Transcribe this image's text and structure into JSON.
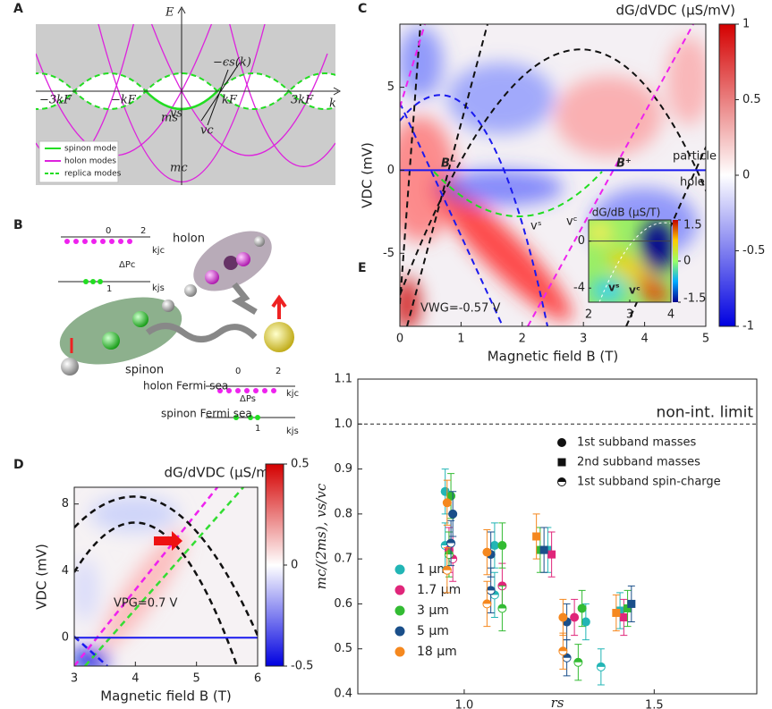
{
  "chart_data": [
    {
      "type": "dispersion-diagram",
      "panel": "A",
      "y_label": "E",
      "x_label": "k",
      "annotations": [
        "−ϵs(k)",
        "−3kF",
        "−kF",
        "ms",
        "vs",
        "kF",
        "vc",
        "3kF",
        "mc"
      ],
      "legend": [
        "spinon mode",
        "holon modes",
        "replica modes"
      ],
      "colors": {
        "spinon": "#22dd22",
        "holon": "#dd22dd"
      }
    },
    {
      "type": "particle-diagram",
      "panel": "B",
      "texts": [
        "0",
        "2",
        "ΔPc",
        "kjc",
        "holon",
        "1",
        "kjs",
        "spinon",
        "holon Fermi sea",
        "0",
        "2",
        "kjc",
        "ΔPs",
        "spinon Fermi sea",
        "1",
        "kjs"
      ]
    },
    {
      "type": "heatmap",
      "panel": "C",
      "title": "dG/dVDC (µS/mV)",
      "x_label": "Magnetic field B (T)",
      "y_label": "VDC (mV)",
      "xlim": [
        0,
        5
      ],
      "xticks": [
        0,
        1,
        2,
        3,
        4,
        5
      ],
      "ylim": [
        -9.4,
        8.8
      ],
      "yticks": [
        -5,
        0,
        5
      ],
      "colorbar": {
        "lim": [
          -1,
          1
        ],
        "ticks": [
          -1,
          -0.5,
          0,
          0.5,
          1
        ]
      },
      "annotations": [
        "B⁻",
        "B⁺",
        "particle",
        "hole",
        "vˢ",
        "vᶜ",
        "VWG=-0.57 V"
      ],
      "inset": {
        "title": "dG/dB (µS/T)",
        "xlim": [
          2,
          4
        ],
        "xticks": [
          2,
          3,
          4
        ],
        "ylim": [
          -5.2,
          1.8
        ],
        "yticks": [
          -4,
          0
        ],
        "colorbar": {
          "lim": [
            -1.5,
            1.5
          ],
          "ticks": [
            -1.5,
            0,
            1.5
          ]
        },
        "annotations": [
          "vˢ",
          "vᶜ"
        ]
      }
    },
    {
      "type": "heatmap",
      "panel": "D",
      "title": "dG/dVDC (µS/mV)",
      "x_label": "Magnetic field B (T)",
      "y_label": "VDC (mV)",
      "xlim": [
        3,
        6
      ],
      "xticks": [
        3,
        4,
        5,
        6
      ],
      "ylim": [
        -1.7,
        9
      ],
      "yticks": [
        0,
        4,
        8
      ],
      "colorbar": {
        "lim": [
          -0.5,
          0.5
        ],
        "ticks": [
          -0.5,
          0,
          0.5
        ]
      },
      "annotations": [
        "VPG=0.7 V"
      ]
    },
    {
      "type": "scatter",
      "panel": "E",
      "x_label": "rs",
      "y_label": "mc/(2ms), vs/vc",
      "xlim": [
        0.72,
        1.77
      ],
      "xticks": [
        {
          "value": 1,
          "label": "1.0"
        },
        1.5
      ],
      "ylim": [
        0.4,
        1.1
      ],
      "yticks": [
        0.4,
        0.5,
        0.6,
        0.7,
        0.8,
        0.9,
        {
          "value": 1,
          "label": "1.0"
        },
        1.1
      ],
      "reference": {
        "value": 1,
        "label": "non-int. limit"
      },
      "marker_legend": [
        {
          "marker": "circle",
          "label": "1st subband masses"
        },
        {
          "marker": "square",
          "label": "2nd subband masses"
        },
        {
          "marker": "half",
          "label": "1st subband spin-charge"
        }
      ],
      "series": [
        {
          "name": "1 µm",
          "color": "#22b5b5",
          "x": [
            0.95,
            0.95,
            1.08,
            1.08,
            1.22,
            1.32,
            1.36,
            1.41
          ],
          "values": [
            0.85,
            0.73,
            0.73,
            0.62,
            0.72,
            0.56,
            0.46,
            0.585
          ],
          "errors": [
            0.05,
            0.05,
            0.05,
            0.05,
            0.05,
            0.04,
            0.04,
            0.04
          ],
          "markers": [
            "circle",
            "half",
            "circle",
            "half",
            "square",
            "circle",
            "half",
            "square"
          ]
        },
        {
          "name": "1.7 µm",
          "color": "#e0267a",
          "x": [
            0.96,
            0.97,
            1.1,
            1.23,
            1.29,
            1.42
          ],
          "values": [
            0.72,
            0.7,
            0.64,
            0.71,
            0.57,
            0.57
          ],
          "errors": [
            0.05,
            0.05,
            0.05,
            0.05,
            0.04,
            0.04
          ],
          "markers": [
            "circle",
            "half",
            "half",
            "square",
            "circle",
            "square"
          ]
        },
        {
          "name": "3 µm",
          "color": "#33bb33",
          "x": [
            0.965,
            0.96,
            1.1,
            1.1,
            1.2,
            1.31,
            1.3,
            1.43
          ],
          "values": [
            0.84,
            0.71,
            0.73,
            0.59,
            0.72,
            0.59,
            0.47,
            0.59
          ],
          "errors": [
            0.05,
            0.05,
            0.05,
            0.05,
            0.05,
            0.04,
            0.04,
            0.04
          ],
          "markers": [
            "circle",
            "half",
            "circle",
            "half",
            "square",
            "circle",
            "half",
            "square"
          ]
        },
        {
          "name": "5 µm",
          "color": "#1a4f8a",
          "x": [
            0.97,
            0.965,
            1.07,
            1.07,
            1.21,
            1.27,
            1.27,
            1.44
          ],
          "values": [
            0.8,
            0.735,
            0.63,
            0.71,
            0.72,
            0.56,
            0.48,
            0.6
          ],
          "errors": [
            0.05,
            0.05,
            0.05,
            0.05,
            0.05,
            0.04,
            0.04,
            0.04
          ],
          "markers": [
            "circle",
            "half",
            "half",
            "circle",
            "square",
            "circle",
            "half",
            "square"
          ]
        },
        {
          "name": "18 µm",
          "color": "#f5881f",
          "x": [
            0.955,
            0.955,
            1.06,
            1.06,
            1.19,
            1.26,
            1.26,
            1.4
          ],
          "values": [
            0.825,
            0.675,
            0.715,
            0.6,
            0.75,
            0.57,
            0.495,
            0.58
          ],
          "errors": [
            0.05,
            0.05,
            0.05,
            0.05,
            0.05,
            0.04,
            0.04,
            0.04
          ],
          "markers": [
            "circle",
            "half",
            "circle",
            "half",
            "square",
            "circle",
            "half",
            "square"
          ]
        }
      ]
    }
  ]
}
